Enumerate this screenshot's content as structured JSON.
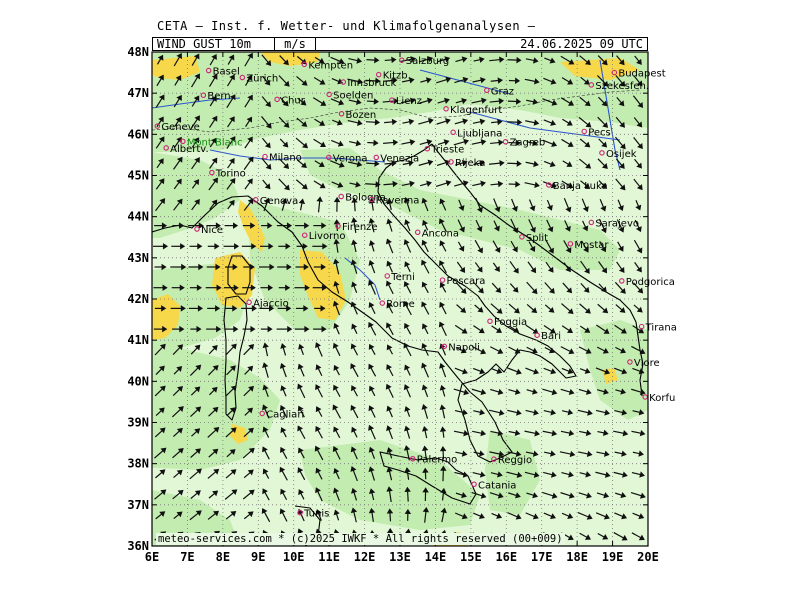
{
  "header": {
    "title": "CETA — Inst. f. Wetter- und Klimafolgenanalysen —",
    "parameter": "WIND GUST 10m",
    "unit": "m/s",
    "datetime": "24.06.2025 09 UTC"
  },
  "footer": {
    "credits": "meteo-services.com * (c)2025 IWKF * All rights reserved (00+009)"
  },
  "axes": {
    "lat_labels": [
      "48N",
      "47N",
      "46N",
      "45N",
      "44N",
      "43N",
      "42N",
      "41N",
      "40N",
      "39N",
      "38N",
      "37N",
      "36N"
    ],
    "lon_labels": [
      "6E",
      "7E",
      "8E",
      "9E",
      "10E",
      "11E",
      "12E",
      "13E",
      "14E",
      "15E",
      "16E",
      "17E",
      "18E",
      "19E",
      "20E"
    ]
  },
  "colors": {
    "field_light": "#e2f7d6",
    "field_mid": "#c3ecb0",
    "field_strong": "#f7d84a",
    "coast": "#000000",
    "rivers": "#2a55d0",
    "cities": "#cc2277"
  },
  "cities": [
    {
      "name": "Salzburg",
      "lon": 13.05,
      "lat": 47.8
    },
    {
      "name": "Kempten",
      "lon": 10.3,
      "lat": 47.7
    },
    {
      "name": "Basel",
      "lon": 7.6,
      "lat": 47.55
    },
    {
      "name": "Zürich",
      "lon": 8.55,
      "lat": 47.38
    },
    {
      "name": "Innsbruck",
      "lon": 11.4,
      "lat": 47.27
    },
    {
      "name": "Kitzb.",
      "lon": 12.4,
      "lat": 47.45
    },
    {
      "name": "Budapest",
      "lon": 19.05,
      "lat": 47.5
    },
    {
      "name": "Szekesfeh.",
      "lon": 18.4,
      "lat": 47.2
    },
    {
      "name": "Bern",
      "lon": 7.45,
      "lat": 46.95
    },
    {
      "name": "Soelden",
      "lon": 11.0,
      "lat": 46.97
    },
    {
      "name": "Graz",
      "lon": 15.45,
      "lat": 47.07
    },
    {
      "name": "Chur",
      "lon": 9.53,
      "lat": 46.85
    },
    {
      "name": "Lienz",
      "lon": 12.77,
      "lat": 46.83
    },
    {
      "name": "Klagenfurt",
      "lon": 14.3,
      "lat": 46.62
    },
    {
      "name": "Bozen",
      "lon": 11.35,
      "lat": 46.5
    },
    {
      "name": "Geneve",
      "lon": 6.15,
      "lat": 46.2
    },
    {
      "name": "Ljubljana",
      "lon": 14.5,
      "lat": 46.05
    },
    {
      "name": "Pecs",
      "lon": 18.2,
      "lat": 46.07
    },
    {
      "name": "Albertv.",
      "lon": 6.4,
      "lat": 45.67
    },
    {
      "name": "Mont Blanc",
      "lon": 6.87,
      "lat": 45.83
    },
    {
      "name": "Trieste",
      "lon": 13.77,
      "lat": 45.65
    },
    {
      "name": "Zagreb",
      "lon": 15.98,
      "lat": 45.82
    },
    {
      "name": "Venezia",
      "lon": 12.33,
      "lat": 45.44
    },
    {
      "name": "Milano",
      "lon": 9.19,
      "lat": 45.46
    },
    {
      "name": "Verona",
      "lon": 10.99,
      "lat": 45.44
    },
    {
      "name": "Rijeka",
      "lon": 14.44,
      "lat": 45.33
    },
    {
      "name": "Osijek",
      "lon": 18.7,
      "lat": 45.55
    },
    {
      "name": "Torino",
      "lon": 7.69,
      "lat": 45.07
    },
    {
      "name": "Banja Luka",
      "lon": 17.2,
      "lat": 44.77
    },
    {
      "name": "Bologna",
      "lon": 11.34,
      "lat": 44.49
    },
    {
      "name": "Genova",
      "lon": 8.93,
      "lat": 44.41
    },
    {
      "name": "Ravenna",
      "lon": 12.2,
      "lat": 44.42
    },
    {
      "name": "Nice",
      "lon": 7.27,
      "lat": 43.7
    },
    {
      "name": "Firenze",
      "lon": 11.25,
      "lat": 43.77
    },
    {
      "name": "Sarajevo",
      "lon": 18.4,
      "lat": 43.86
    },
    {
      "name": "Livorno",
      "lon": 10.31,
      "lat": 43.55
    },
    {
      "name": "Ancona",
      "lon": 13.5,
      "lat": 43.62
    },
    {
      "name": "Split",
      "lon": 16.44,
      "lat": 43.51
    },
    {
      "name": "Mostar",
      "lon": 17.81,
      "lat": 43.34
    },
    {
      "name": "Terni",
      "lon": 12.64,
      "lat": 42.56
    },
    {
      "name": "Pescara",
      "lon": 14.2,
      "lat": 42.46
    },
    {
      "name": "Podgorica",
      "lon": 19.26,
      "lat": 42.44
    },
    {
      "name": "Ajaccio",
      "lon": 8.74,
      "lat": 41.92
    },
    {
      "name": "Rome",
      "lon": 12.5,
      "lat": 41.9
    },
    {
      "name": "Foggia",
      "lon": 15.54,
      "lat": 41.46
    },
    {
      "name": "Tirana",
      "lon": 19.82,
      "lat": 41.33
    },
    {
      "name": "Bari",
      "lon": 16.87,
      "lat": 41.12
    },
    {
      "name": "Napoli",
      "lon": 14.25,
      "lat": 40.85
    },
    {
      "name": "Vlore",
      "lon": 19.49,
      "lat": 40.47
    },
    {
      "name": "Korfu",
      "lon": 19.92,
      "lat": 39.62
    },
    {
      "name": "Cagliari",
      "lon": 9.11,
      "lat": 39.22
    },
    {
      "name": "Reggio",
      "lon": 15.65,
      "lat": 38.11
    },
    {
      "name": "Palermo",
      "lon": 13.36,
      "lat": 38.12
    },
    {
      "name": "Catania",
      "lon": 15.09,
      "lat": 37.5
    },
    {
      "name": "Tunis",
      "lon": 10.18,
      "lat": 36.81
    }
  ]
}
